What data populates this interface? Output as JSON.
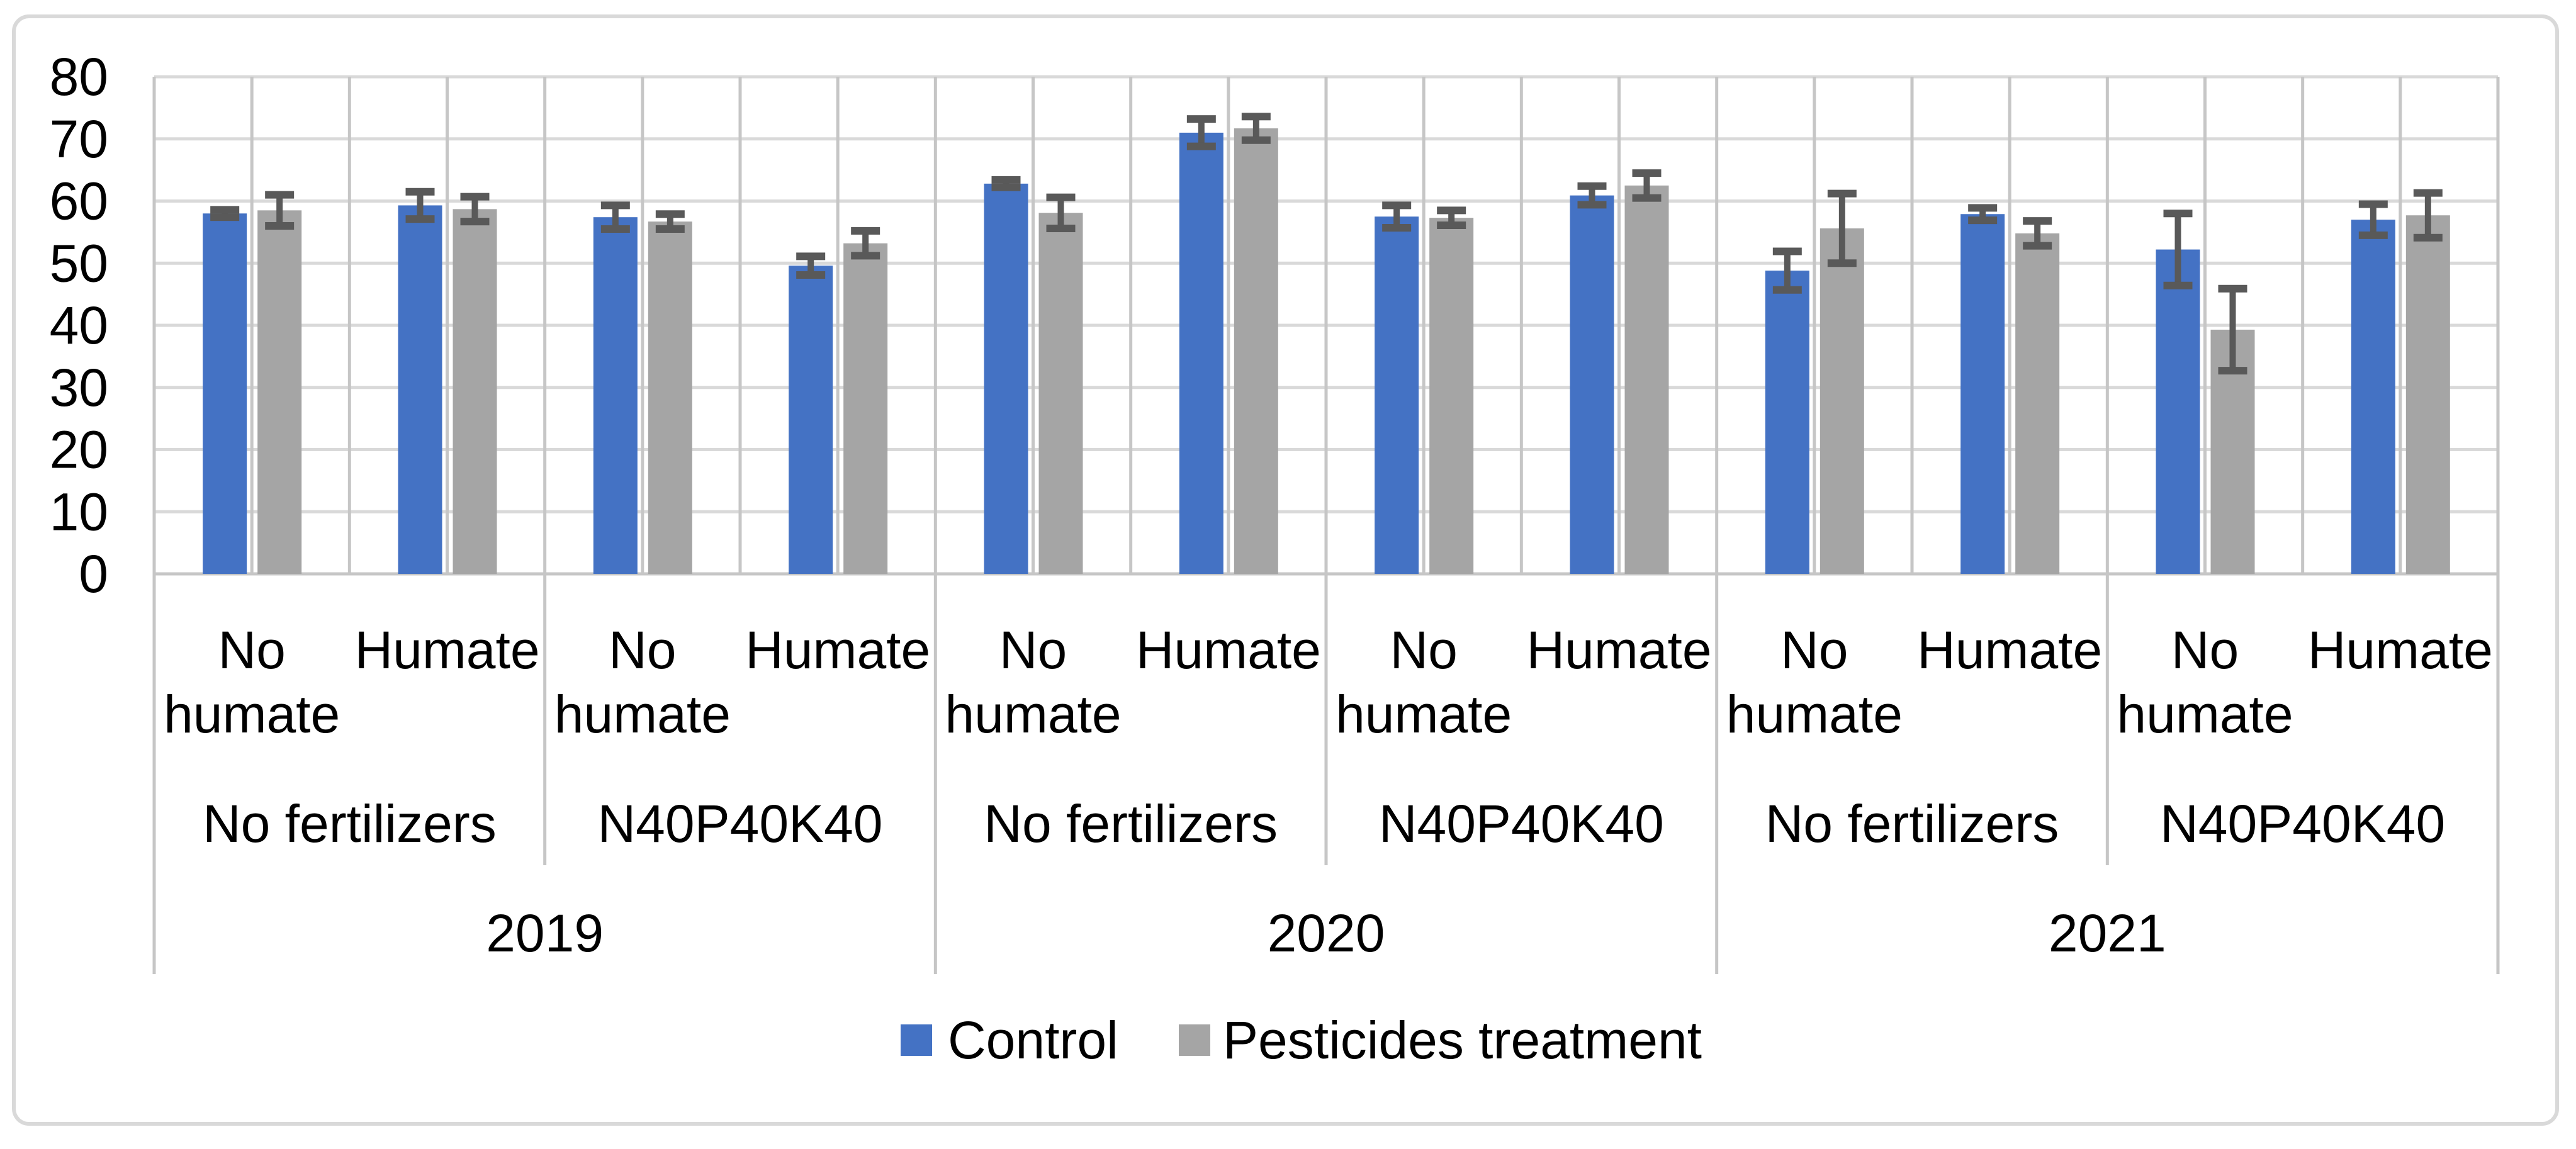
{
  "figure": {
    "description": "Grouped bar chart with error bars, Excel style",
    "background": "#FFFFFF",
    "border_color": "#D9D9D9"
  },
  "chart_data": {
    "type": "bar",
    "title": "",
    "xlabel": "",
    "ylabel": "",
    "ylim": [
      0,
      80
    ],
    "yticks": [
      "0",
      "10",
      "20",
      "30",
      "40",
      "50",
      "60",
      "70",
      "80"
    ],
    "grid": {
      "horizontal": true,
      "vertical": true
    },
    "legend_position": "bottom",
    "axis_level_labels": {
      "humate": [
        "No humate",
        "Humate",
        "No humate",
        "Humate",
        "No humate",
        "Humate",
        "No humate",
        "Humate",
        "No humate",
        "Humate",
        "No humate",
        "Humate"
      ],
      "fertilizer": [
        "No fertilizers",
        "N40P40K40",
        "No fertilizers",
        "N40P40K40",
        "No fertilizers",
        "N40P40K40"
      ],
      "year": [
        "2019",
        "2020",
        "2021"
      ]
    },
    "series": [
      {
        "name": "Control",
        "color": "#4472C4",
        "values": [
          58.0,
          59.3,
          57.4,
          49.6,
          62.8,
          71.0,
          57.5,
          60.9,
          48.8,
          57.9,
          52.2,
          57.0
        ],
        "errors": [
          0.6,
          2.2,
          1.9,
          1.5,
          0.6,
          2.2,
          1.8,
          1.5,
          3.1,
          1.0,
          5.8,
          2.5
        ]
      },
      {
        "name": "Pesticides treatment",
        "color": "#A5A5A5",
        "values": [
          58.5,
          58.7,
          56.7,
          53.2,
          58.1,
          71.7,
          57.3,
          62.5,
          55.6,
          54.8,
          39.3,
          57.7
        ],
        "errors": [
          2.5,
          2.0,
          1.2,
          2.0,
          2.5,
          1.9,
          1.2,
          2.0,
          5.6,
          2.0,
          6.6,
          3.6
        ]
      }
    ],
    "error_bar_color": "#595959",
    "gridline_color_horizontal": "#D9D9D9",
    "gridline_color_vertical": "#C6C6C6"
  },
  "legend": {
    "items": [
      {
        "label": "Control",
        "color": "#4472C4"
      },
      {
        "label": "Pesticides treatment",
        "color": "#A5A5A5"
      }
    ]
  }
}
